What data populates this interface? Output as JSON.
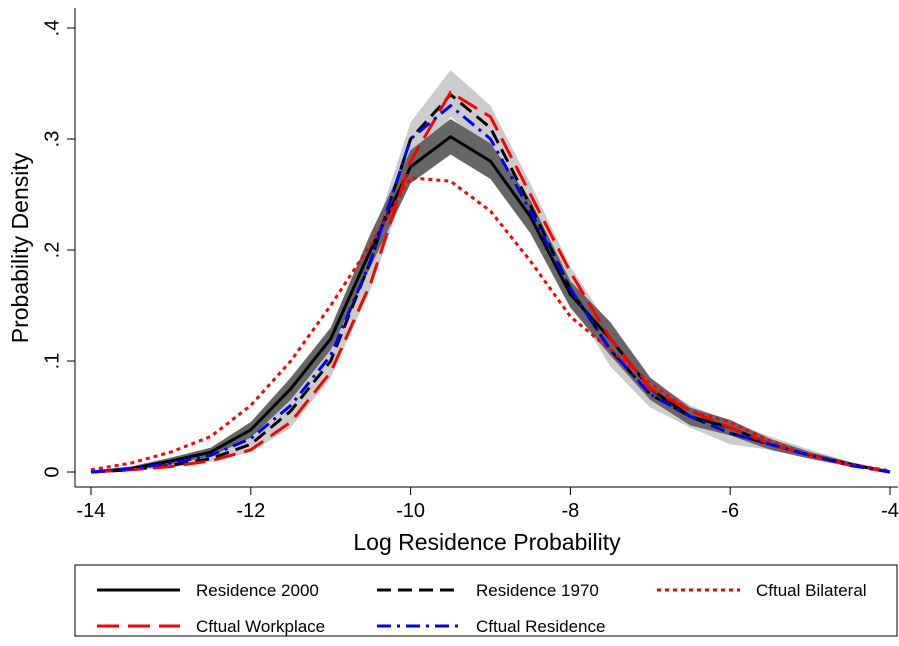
{
  "chart_data": {
    "type": "line",
    "xlabel": "Log Residence Probability",
    "ylabel": "Probability Density",
    "x": [
      -14,
      -13.5,
      -13,
      -12.5,
      -12,
      -11.5,
      -11,
      -10.5,
      -10,
      -9.5,
      -9,
      -8.5,
      -8,
      -7.5,
      -7,
      -6.5,
      -6,
      -5.5,
      -5,
      -4.5,
      -4
    ],
    "xlim": [
      -14.2,
      -3.9
    ],
    "ylim": [
      -0.0135,
      0.418
    ],
    "xticks": [
      -14,
      -12,
      -10,
      -8,
      -6,
      -4
    ],
    "yticks": [
      0,
      {
        "value": 0.1,
        "label": ".1"
      },
      {
        "value": 0.2,
        "label": ".2"
      },
      {
        "value": 0.3,
        "label": ".3"
      },
      {
        "value": 0.4,
        "label": ".4"
      }
    ],
    "bands": [
      {
        "color": "#cccccc",
        "upper": [
          0.001,
          0.004,
          0.01,
          0.017,
          0.032,
          0.065,
          0.115,
          0.205,
          0.315,
          0.362,
          0.33,
          0.26,
          0.185,
          0.13,
          0.083,
          0.06,
          0.045,
          0.032,
          0.02,
          0.009,
          0.001
        ],
        "lower": [
          0,
          0.001,
          0.004,
          0.009,
          0.018,
          0.04,
          0.085,
          0.165,
          0.27,
          0.32,
          0.29,
          0.225,
          0.155,
          0.095,
          0.058,
          0.04,
          0.025,
          0.02,
          0.012,
          0.005,
          0
        ]
      },
      {
        "color": "#666666",
        "upper": [
          0.001,
          0.005,
          0.013,
          0.022,
          0.045,
          0.085,
          0.13,
          0.215,
          0.29,
          0.318,
          0.296,
          0.245,
          0.172,
          0.135,
          0.085,
          0.058,
          0.047,
          0.03,
          0.018,
          0.009,
          0.001
        ],
        "lower": [
          0,
          0.001,
          0.007,
          0.014,
          0.031,
          0.065,
          0.11,
          0.185,
          0.26,
          0.286,
          0.264,
          0.215,
          0.148,
          0.105,
          0.065,
          0.042,
          0.033,
          0.02,
          0.012,
          0.005,
          0
        ]
      }
    ],
    "series": [
      {
        "name": "Residence 2000",
        "color": "#000000",
        "dash": "none",
        "values": [
          0,
          0.003,
          0.01,
          0.018,
          0.038,
          0.075,
          0.12,
          0.2,
          0.275,
          0.302,
          0.28,
          0.23,
          0.16,
          0.12,
          0.075,
          0.05,
          0.04,
          0.025,
          0.015,
          0.007,
          0
        ]
      },
      {
        "name": "Residence 1970",
        "color": "#000000",
        "dash": "14,7",
        "values": [
          0,
          0.002,
          0.006,
          0.012,
          0.025,
          0.055,
          0.1,
          0.19,
          0.3,
          0.34,
          0.31,
          0.24,
          0.165,
          0.11,
          0.07,
          0.05,
          0.035,
          0.025,
          0.015,
          0.007,
          0
        ]
      },
      {
        "name": "Cftual Bilateral",
        "color": "#ff0000",
        "dash": "4,4",
        "values": [
          0.002,
          0.008,
          0.018,
          0.032,
          0.06,
          0.1,
          0.15,
          0.205,
          0.265,
          0.262,
          0.235,
          0.19,
          0.14,
          0.11,
          0.08,
          0.055,
          0.045,
          0.028,
          0.015,
          0.007,
          0.001
        ]
      },
      {
        "name": "Cftual Workplace",
        "color": "#ff0000",
        "dash": "22,9",
        "values": [
          0,
          0.002,
          0.005,
          0.01,
          0.02,
          0.045,
          0.09,
          0.17,
          0.28,
          0.342,
          0.32,
          0.25,
          0.18,
          0.12,
          0.075,
          0.055,
          0.04,
          0.025,
          0.015,
          0.006,
          0
        ]
      },
      {
        "name": "Cftual Residence",
        "color": "#0000ff",
        "dash": "14,6,3,6",
        "values": [
          0,
          0.003,
          0.008,
          0.015,
          0.03,
          0.06,
          0.105,
          0.19,
          0.3,
          0.33,
          0.3,
          0.235,
          0.165,
          0.11,
          0.07,
          0.05,
          0.035,
          0.025,
          0.015,
          0.006,
          0
        ]
      }
    ]
  }
}
